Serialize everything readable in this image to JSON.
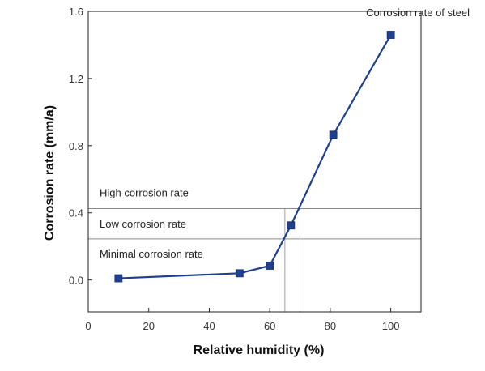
{
  "chart_data": {
    "type": "line",
    "title": "Corrosion rate of steel",
    "xlabel": "Relative humidity (%)",
    "ylabel": "Corrosion rate (mm/a)",
    "xlim": [
      0,
      110
    ],
    "ylim": [
      -0.19,
      1.6
    ],
    "x_ticks": [
      0,
      20,
      40,
      60,
      80,
      100
    ],
    "y_ticks": [
      0.0,
      0.4,
      0.8,
      1.2,
      1.6
    ],
    "y_tick_labels": [
      "0.0",
      "0.4",
      "0.8",
      "1.2",
      "1.6"
    ],
    "series": [
      {
        "name": "",
        "color": "#1f3f8f",
        "x": [
          10,
          50,
          60,
          67,
          81,
          100
        ],
        "y": [
          0.01,
          0.04,
          0.085,
          0.325,
          0.865,
          1.46
        ]
      }
    ],
    "thresholds": [
      {
        "y": 0.425,
        "label_above": "High corrosion rate",
        "label_below": "Low corrosion rate"
      },
      {
        "y": 0.245,
        "label_below": "Minimal corrosion rate"
      }
    ],
    "drop_lines_x": [
      65,
      70
    ],
    "grid": false,
    "legend": "none"
  }
}
